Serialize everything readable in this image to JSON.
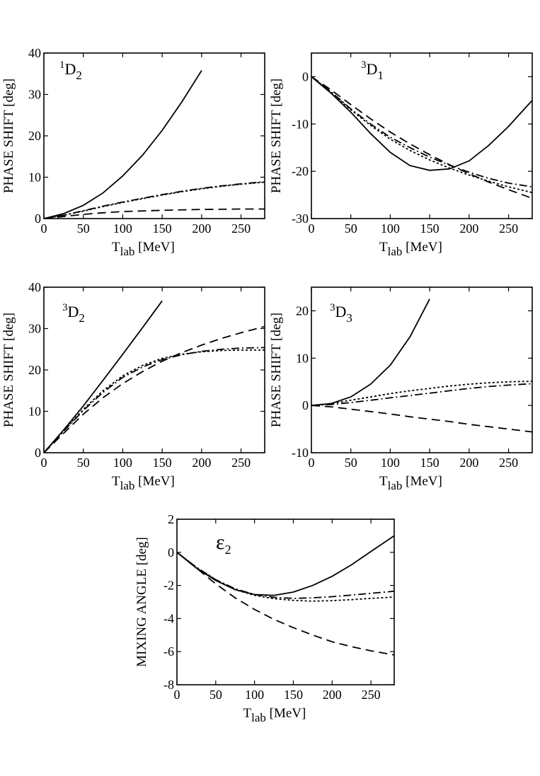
{
  "figure": {
    "legend": "none",
    "line_styles": {
      "solid": "solid",
      "dashed": "dashed",
      "dotted": "dotted",
      "dashdot": "dash-dot"
    },
    "colors": {
      "ink": "#000000",
      "background": "#ffffff"
    }
  },
  "chart_data": [
    {
      "type": "line",
      "title": "1D2",
      "title_prefix": "1",
      "title_main": "D",
      "title_sub": "2",
      "xlabel_main": "T",
      "xlabel_sub": "lab",
      "xlabel_unit": "[MeV]",
      "ylabel": "PHASE  SHIFT [deg]",
      "xlim": [
        0,
        280
      ],
      "ylim": [
        0,
        40
      ],
      "xticks": [
        0,
        50,
        100,
        150,
        200,
        250
      ],
      "yticks": [
        0,
        10,
        20,
        30,
        40
      ],
      "series": [
        {
          "name": "solid",
          "style": "solid",
          "x": [
            0,
            25,
            50,
            75,
            100,
            125,
            150,
            175,
            200
          ],
          "y": [
            0,
            1.2,
            3.2,
            6.2,
            10.3,
            15.3,
            21.3,
            28.2,
            35.8
          ]
        },
        {
          "name": "dash-dot",
          "style": "dashdot",
          "x": [
            0,
            25,
            50,
            75,
            100,
            125,
            150,
            175,
            200,
            225,
            250,
            280
          ],
          "y": [
            0,
            0.8,
            1.9,
            3.0,
            4.0,
            4.9,
            5.8,
            6.6,
            7.3,
            7.9,
            8.4,
            8.9
          ]
        },
        {
          "name": "dotted",
          "style": "dotted",
          "x": [
            0,
            25,
            50,
            75,
            100,
            125,
            150,
            175,
            200,
            225,
            250,
            280
          ],
          "y": [
            0,
            0.8,
            1.8,
            2.9,
            3.9,
            4.8,
            5.7,
            6.5,
            7.2,
            7.8,
            8.3,
            8.8
          ]
        },
        {
          "name": "dashed",
          "style": "dashed",
          "x": [
            0,
            25,
            50,
            75,
            100,
            150,
            200,
            250,
            280
          ],
          "y": [
            0,
            0.5,
            1.0,
            1.4,
            1.7,
            2.0,
            2.2,
            2.3,
            2.3
          ]
        }
      ]
    },
    {
      "type": "line",
      "title": "3D1",
      "title_prefix": "3",
      "title_main": "D",
      "title_sub": "1",
      "xlabel_main": "T",
      "xlabel_sub": "lab",
      "xlabel_unit": "[MeV]",
      "ylabel": "PHASE  SHIFT [deg]",
      "xlim": [
        0,
        280
      ],
      "ylim": [
        -30,
        5
      ],
      "xticks": [
        0,
        50,
        100,
        150,
        200,
        250
      ],
      "yticks": [
        -30,
        -20,
        -10,
        0
      ],
      "series": [
        {
          "name": "solid",
          "style": "solid",
          "x": [
            0,
            25,
            50,
            75,
            100,
            125,
            150,
            175,
            200,
            225,
            250,
            280
          ],
          "y": [
            0,
            -3.5,
            -7.5,
            -12,
            -16,
            -18.8,
            -19.8,
            -19.5,
            -17.8,
            -14.5,
            -10.5,
            -5
          ]
        },
        {
          "name": "dash-dot",
          "style": "dashdot",
          "x": [
            0,
            25,
            50,
            75,
            100,
            125,
            150,
            175,
            200,
            225,
            250,
            280
          ],
          "y": [
            0,
            -3.2,
            -6.8,
            -10,
            -12.8,
            -15,
            -17,
            -18.7,
            -20.2,
            -21.5,
            -22.5,
            -23.3
          ]
        },
        {
          "name": "dotted",
          "style": "dotted",
          "x": [
            0,
            25,
            50,
            75,
            100,
            125,
            150,
            175,
            200,
            225,
            250,
            280
          ],
          "y": [
            0,
            -3.3,
            -7,
            -10.3,
            -13.2,
            -15.6,
            -17.6,
            -19.3,
            -20.8,
            -22.1,
            -23.3,
            -24.5
          ]
        },
        {
          "name": "dashed",
          "style": "dashed",
          "x": [
            0,
            25,
            50,
            75,
            100,
            125,
            150,
            175,
            200,
            225,
            250,
            280
          ],
          "y": [
            0,
            -2.8,
            -5.9,
            -8.9,
            -11.7,
            -14.2,
            -16.5,
            -18.6,
            -20.5,
            -22.3,
            -23.9,
            -25.7
          ]
        }
      ]
    },
    {
      "type": "line",
      "title": "3D2",
      "title_prefix": "3",
      "title_main": "D",
      "title_sub": "2",
      "xlabel_main": "T",
      "xlabel_sub": "lab",
      "xlabel_unit": "[MeV]",
      "ylabel": "PHASE  SHIFT [deg]",
      "xlim": [
        0,
        280
      ],
      "ylim": [
        0,
        40
      ],
      "xticks": [
        0,
        50,
        100,
        150,
        200,
        250
      ],
      "yticks": [
        0,
        10,
        20,
        30,
        40
      ],
      "series": [
        {
          "name": "solid",
          "style": "solid",
          "x": [
            0,
            25,
            50,
            75,
            100,
            125,
            150
          ],
          "y": [
            0,
            5.5,
            11.3,
            17.5,
            23.8,
            30.2,
            36.7
          ]
        },
        {
          "name": "dash-dot",
          "style": "dashdot",
          "x": [
            0,
            25,
            50,
            75,
            100,
            125,
            150,
            175,
            200,
            225,
            250,
            280
          ],
          "y": [
            0,
            5.2,
            10.2,
            14.6,
            18.2,
            20.7,
            22.5,
            23.7,
            24.5,
            25.0,
            25.3,
            25.4
          ]
        },
        {
          "name": "dotted",
          "style": "dotted",
          "x": [
            0,
            25,
            50,
            75,
            100,
            125,
            150,
            175,
            200,
            225,
            250,
            280
          ],
          "y": [
            0,
            5.3,
            10.5,
            15,
            18.6,
            21.1,
            22.8,
            23.8,
            24.4,
            24.7,
            24.8,
            24.8
          ]
        },
        {
          "name": "dashed",
          "style": "dashed",
          "x": [
            0,
            25,
            50,
            75,
            100,
            125,
            150,
            175,
            200,
            225,
            250,
            280
          ],
          "y": [
            0,
            4.7,
            9.3,
            13.3,
            16.7,
            19.6,
            22.1,
            24.2,
            26,
            27.6,
            29,
            30.5
          ]
        }
      ]
    },
    {
      "type": "line",
      "title": "3D3",
      "title_prefix": "3",
      "title_main": "D",
      "title_sub": "3",
      "xlabel_main": "T",
      "xlabel_sub": "lab",
      "xlabel_unit": "[MeV]",
      "ylabel": "PHASE  SHIFT [deg]",
      "xlim": [
        0,
        280
      ],
      "ylim": [
        -10,
        25
      ],
      "xticks": [
        0,
        50,
        100,
        150,
        200,
        250
      ],
      "yticks": [
        -10,
        0,
        10,
        20
      ],
      "series": [
        {
          "name": "solid",
          "style": "solid",
          "x": [
            0,
            25,
            50,
            75,
            100,
            125,
            150
          ],
          "y": [
            0,
            0.4,
            1.8,
            4.5,
            8.5,
            14.5,
            22.5
          ]
        },
        {
          "name": "dotted",
          "style": "dotted",
          "x": [
            0,
            25,
            50,
            75,
            100,
            125,
            150,
            175,
            200,
            225,
            250,
            280
          ],
          "y": [
            0,
            0.4,
            1.1,
            1.8,
            2.5,
            3.1,
            3.6,
            4.1,
            4.5,
            4.8,
            5.0,
            5.1
          ]
        },
        {
          "name": "dash-dot",
          "style": "dashdot",
          "x": [
            0,
            25,
            50,
            75,
            100,
            125,
            150,
            175,
            200,
            225,
            250,
            280
          ],
          "y": [
            0,
            0.2,
            0.6,
            1.1,
            1.6,
            2.1,
            2.6,
            3.1,
            3.6,
            4.0,
            4.3,
            4.6
          ]
        },
        {
          "name": "dashed",
          "style": "dashed",
          "x": [
            0,
            25,
            50,
            75,
            100,
            125,
            150,
            175,
            200,
            225,
            250,
            280
          ],
          "y": [
            0,
            -0.3,
            -0.8,
            -1.3,
            -1.8,
            -2.4,
            -2.9,
            -3.4,
            -4.0,
            -4.5,
            -5.0,
            -5.6
          ]
        }
      ]
    },
    {
      "type": "line",
      "title": "ε2",
      "title_prefix": "",
      "title_main": "ε",
      "title_sub": "2",
      "xlabel_main": "T",
      "xlabel_sub": "lab",
      "xlabel_unit": "[MeV]",
      "ylabel": "MIXING  ANGLE [deg]",
      "xlim": [
        0,
        280
      ],
      "ylim": [
        -8,
        2
      ],
      "xticks": [
        0,
        50,
        100,
        150,
        200,
        250
      ],
      "yticks": [
        -8,
        -6,
        -4,
        -2,
        0,
        2
      ],
      "series": [
        {
          "name": "solid",
          "style": "solid",
          "x": [
            0,
            25,
            50,
            75,
            100,
            125,
            150,
            175,
            200,
            225,
            250,
            280
          ],
          "y": [
            0,
            -0.95,
            -1.7,
            -2.25,
            -2.55,
            -2.6,
            -2.4,
            -2.0,
            -1.45,
            -0.75,
            0.05,
            1.0
          ]
        },
        {
          "name": "dash-dot",
          "style": "dashdot",
          "x": [
            0,
            25,
            50,
            75,
            100,
            125,
            150,
            175,
            200,
            225,
            250,
            280
          ],
          "y": [
            0,
            -0.9,
            -1.65,
            -2.2,
            -2.55,
            -2.72,
            -2.78,
            -2.75,
            -2.68,
            -2.58,
            -2.48,
            -2.35
          ]
        },
        {
          "name": "dotted",
          "style": "dotted",
          "x": [
            0,
            25,
            50,
            75,
            100,
            125,
            150,
            175,
            200,
            225,
            250,
            280
          ],
          "y": [
            0,
            -0.9,
            -1.65,
            -2.25,
            -2.6,
            -2.8,
            -2.9,
            -2.95,
            -2.92,
            -2.86,
            -2.78,
            -2.7
          ]
        },
        {
          "name": "dashed",
          "style": "dashed",
          "x": [
            0,
            25,
            50,
            75,
            100,
            125,
            150,
            175,
            200,
            225,
            250,
            280
          ],
          "y": [
            0,
            -0.95,
            -1.9,
            -2.75,
            -3.45,
            -4.05,
            -4.55,
            -5.0,
            -5.4,
            -5.7,
            -5.95,
            -6.2
          ]
        }
      ]
    }
  ]
}
